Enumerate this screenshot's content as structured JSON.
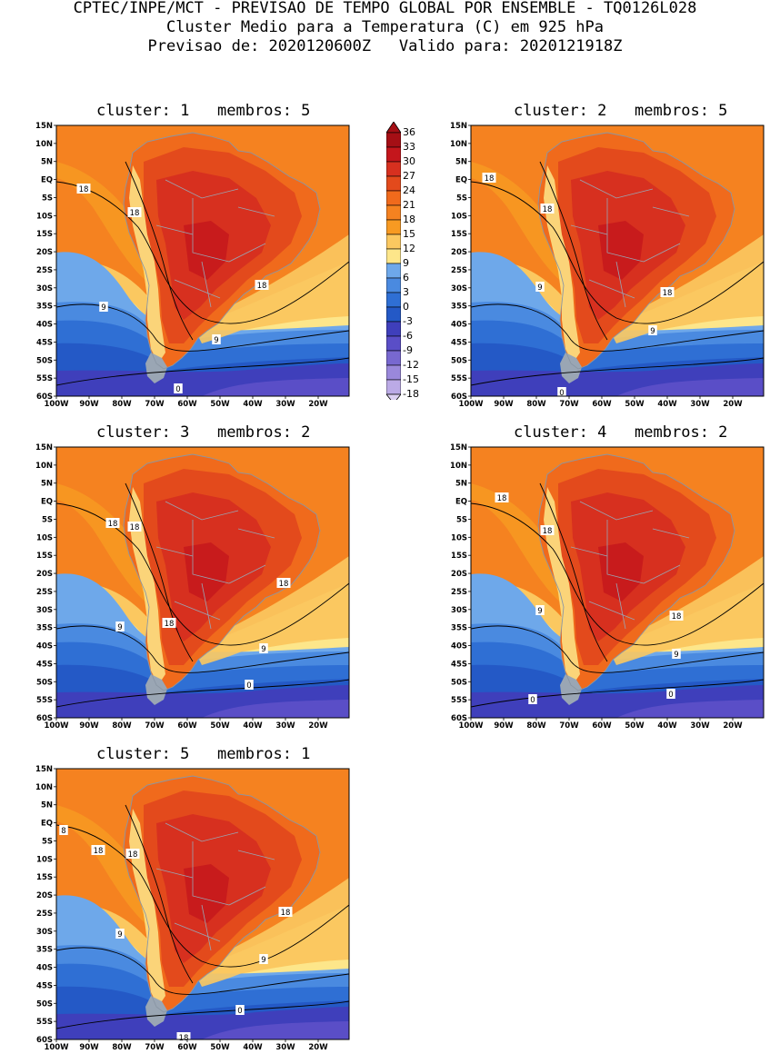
{
  "header": {
    "line1": "CPTEC/INPE/MCT - PREVISAO DE TEMPO GLOBAL POR ENSEMBLE - TQ0126L028",
    "line2": "Cluster Medio para a Temperatura (C) em 925 hPa",
    "line3": "Previsao de: 2020120600Z   Valido para: 2020121918Z"
  },
  "axes": {
    "lat_labels": [
      "15N",
      "10N",
      "5N",
      "EQ",
      "5S",
      "10S",
      "15S",
      "20S",
      "25S",
      "30S",
      "35S",
      "40S",
      "45S",
      "50S",
      "55S",
      "60S"
    ],
    "lon_labels": [
      "100W",
      "90W",
      "80W",
      "70W",
      "60W",
      "50W",
      "40W",
      "30W",
      "20W"
    ]
  },
  "colorbar": {
    "labels": [
      "36",
      "33",
      "30",
      "27",
      "24",
      "21",
      "18",
      "15",
      "12",
      "9",
      "6",
      "3",
      "0",
      "-3",
      "-6",
      "-9",
      "-12",
      "-15",
      "-18"
    ],
    "colors": [
      "#a50f15",
      "#c4161c",
      "#d7301f",
      "#e34a1c",
      "#f06a1c",
      "#f58220",
      "#f79a22",
      "#fbc860",
      "#fde68a",
      "#6ea8ea",
      "#4a8ae0",
      "#2f6fd4",
      "#2459c6",
      "#3f3fbb",
      "#5a4ec7",
      "#7868d0",
      "#9a88db",
      "#bbaae6",
      "#dcd0f2"
    ]
  },
  "panels": [
    {
      "title": "cluster: 1   membros: 5",
      "contours": [
        "18",
        "18",
        "18",
        "9",
        "9",
        "0"
      ]
    },
    {
      "title": "cluster: 2   membros: 5",
      "contours": [
        "18",
        "18",
        "18",
        "9",
        "9",
        "0"
      ]
    },
    {
      "title": "cluster: 3   membros: 2",
      "contours": [
        "18",
        "18",
        "18",
        "18",
        "9",
        "9",
        "0"
      ]
    },
    {
      "title": "cluster: 4   membros: 2",
      "contours": [
        "18",
        "18",
        "18",
        "9",
        "9",
        "0",
        "0"
      ]
    },
    {
      "title": "cluster: 5   membros: 1",
      "contours": [
        "8",
        "18",
        "18",
        "18",
        "18",
        "9",
        "9",
        "0"
      ]
    }
  ]
}
